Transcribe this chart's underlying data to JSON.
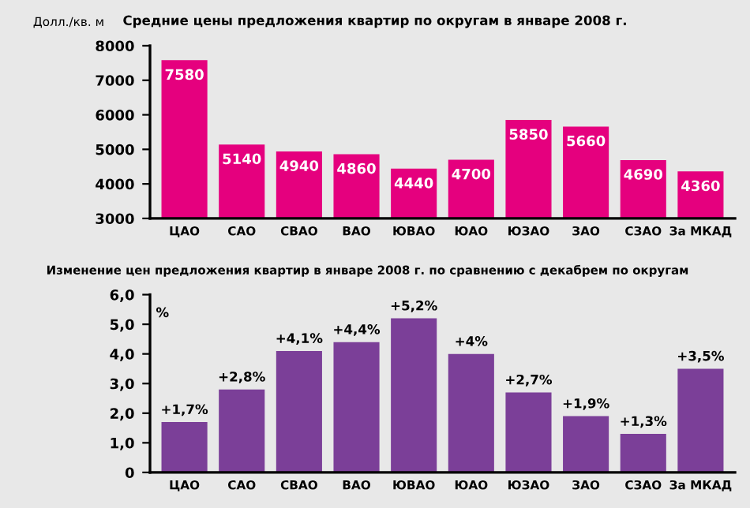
{
  "chart_data": [
    {
      "type": "bar",
      "title": "Средние цены предложения квартир по округам в январе 2008 г.",
      "ylabel": "Долл./кв. м",
      "categories": [
        "ЦАО",
        "САО",
        "СВАО",
        "ВАО",
        "ЮВАО",
        "ЮАО",
        "ЮЗАО",
        "ЗАО",
        "СЗАО",
        "За МКАД"
      ],
      "values": [
        7580,
        5140,
        4940,
        4860,
        4440,
        4700,
        5850,
        5660,
        4690,
        4360
      ],
      "color": "#e5007e",
      "ylim": [
        3000,
        8000
      ],
      "yticks": [
        3000,
        4000,
        5000,
        6000,
        7000,
        8000
      ],
      "data_labels": true,
      "grid": false,
      "legend": false
    },
    {
      "type": "bar",
      "title": "Изменение цен предложения квартир в январе 2008 г. по сравнению с декабрем по округам",
      "ylabel": "%",
      "categories": [
        "ЦАО",
        "САО",
        "СВАО",
        "ВАО",
        "ЮВАО",
        "ЮАО",
        "ЮЗАО",
        "ЗАО",
        "СЗАО",
        "За МКАД"
      ],
      "values": [
        1.7,
        2.8,
        4.1,
        4.4,
        5.2,
        4,
        2.7,
        1.9,
        1.3,
        3.5
      ],
      "color": "#7b3f98",
      "value_labels": [
        "+1,7%",
        "+2,8%",
        "+4,1%",
        "+4,4%",
        "+5,2%",
        "+4%",
        "+2,7%",
        "+1,9%",
        "+1,3%",
        "+3,5%"
      ],
      "ylim": [
        0,
        6
      ],
      "yticks": [
        0,
        {
          "value": 1,
          "label": "1,0"
        },
        {
          "value": 2,
          "label": "2,0"
        },
        {
          "value": 3,
          "label": "3,0"
        },
        {
          "value": 4,
          "label": "4,0"
        },
        {
          "value": 5,
          "label": "5,0"
        },
        {
          "value": 6,
          "label": "6,0"
        }
      ],
      "grid": false,
      "legend": false
    }
  ]
}
